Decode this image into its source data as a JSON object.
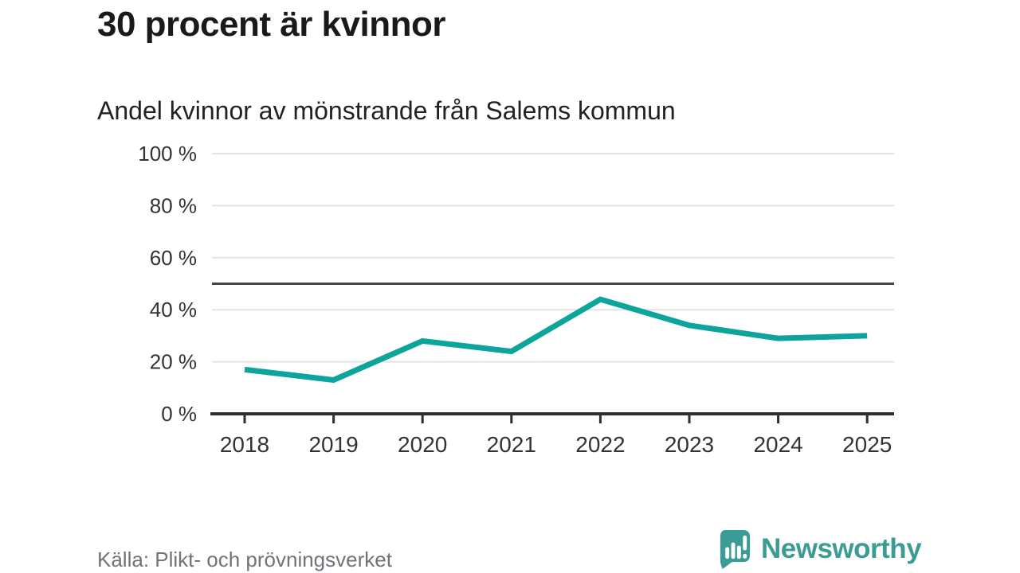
{
  "source": "Källa: Plikt- och prövningsverket",
  "branding": {
    "name": "Newsworthy",
    "icon": "newsworthy-speech-bubble-chart-icon",
    "color": "#3a9c94"
  },
  "chart_data": {
    "type": "line",
    "title": "30 procent är kvinnor",
    "subtitle": "Andel kvinnor av mönstrande från Salems kommun",
    "x": [
      "2018",
      "2019",
      "2020",
      "2021",
      "2022",
      "2023",
      "2024",
      "2025"
    ],
    "series": [
      {
        "name": "Andel kvinnor av mönstrande",
        "values": [
          17,
          13,
          28,
          24,
          44,
          34,
          29,
          30
        ]
      }
    ],
    "xlabel": "",
    "ylabel": "",
    "ylim": [
      0,
      100
    ],
    "yticks": [
      0,
      20,
      40,
      60,
      80,
      100
    ],
    "ytick_suffix": " %",
    "reference_line": {
      "value": 50,
      "color": "#45454d"
    },
    "grid": "horizontal-only",
    "legend": "none",
    "colors": {
      "line": "#0da59b",
      "grid": "#e3e3e3",
      "axis": "#2e2e2e",
      "tick_label": "#333333"
    }
  }
}
